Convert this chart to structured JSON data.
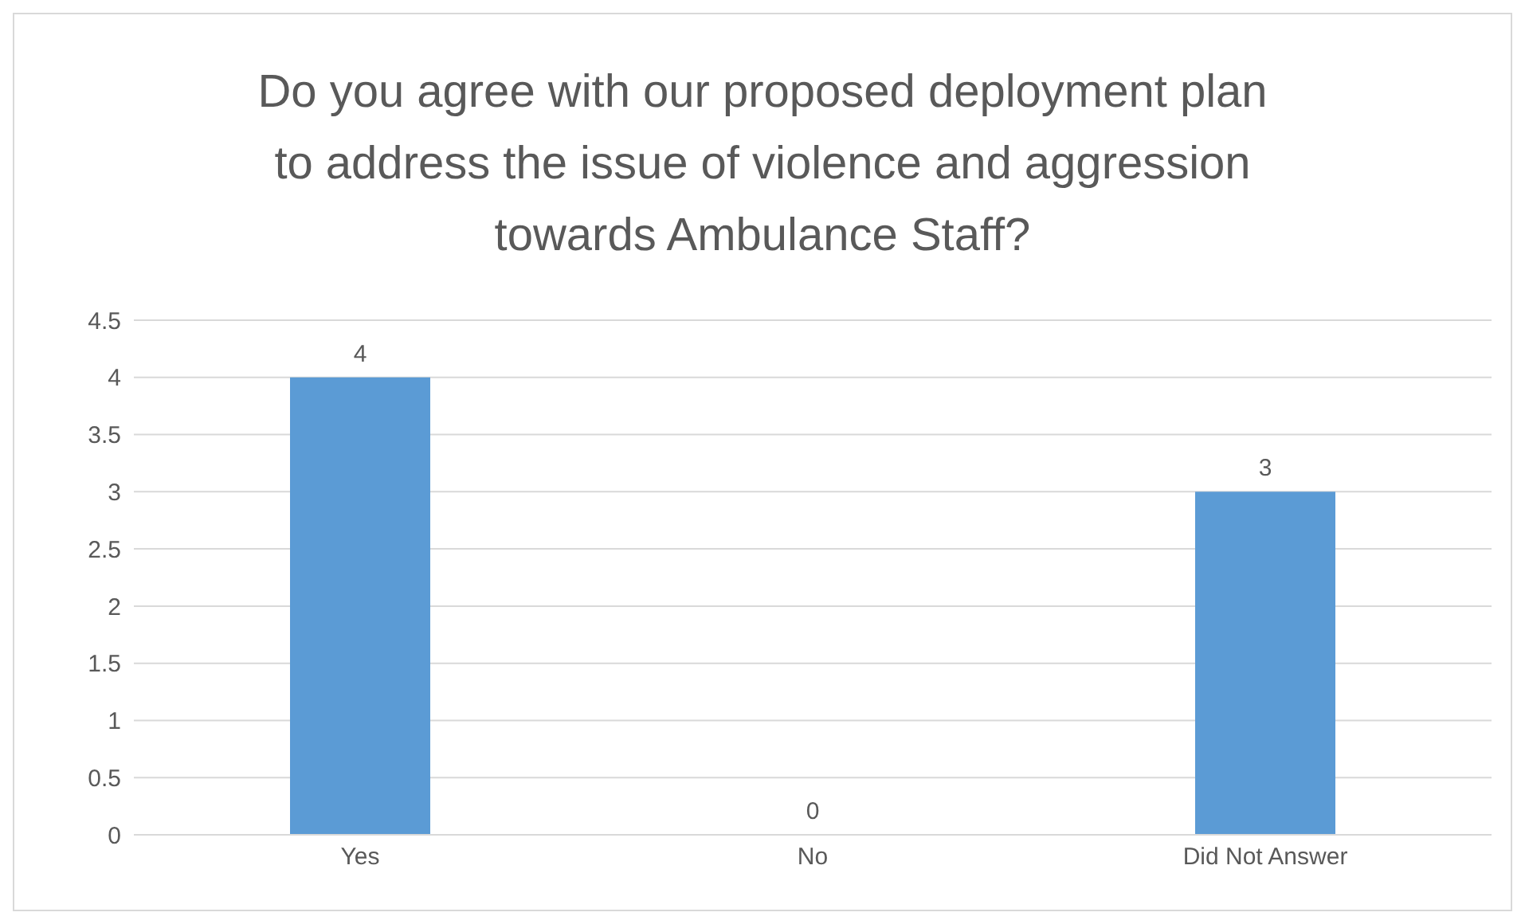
{
  "chart_data": {
    "type": "bar",
    "title": "Do you agree with our proposed deployment plan to address the issue of violence and aggression towards Ambulance Staff?",
    "categories": [
      "Yes",
      "No",
      "Did Not Answer"
    ],
    "values": [
      4,
      0,
      3
    ],
    "color": "#5b9bd5",
    "ylim": [
      0,
      4.5
    ],
    "yticks": [
      0,
      0.5,
      1,
      1.5,
      2,
      2.5,
      3,
      3.5,
      4,
      4.5
    ],
    "grid": "y",
    "data_labels": true,
    "legend": false
  }
}
